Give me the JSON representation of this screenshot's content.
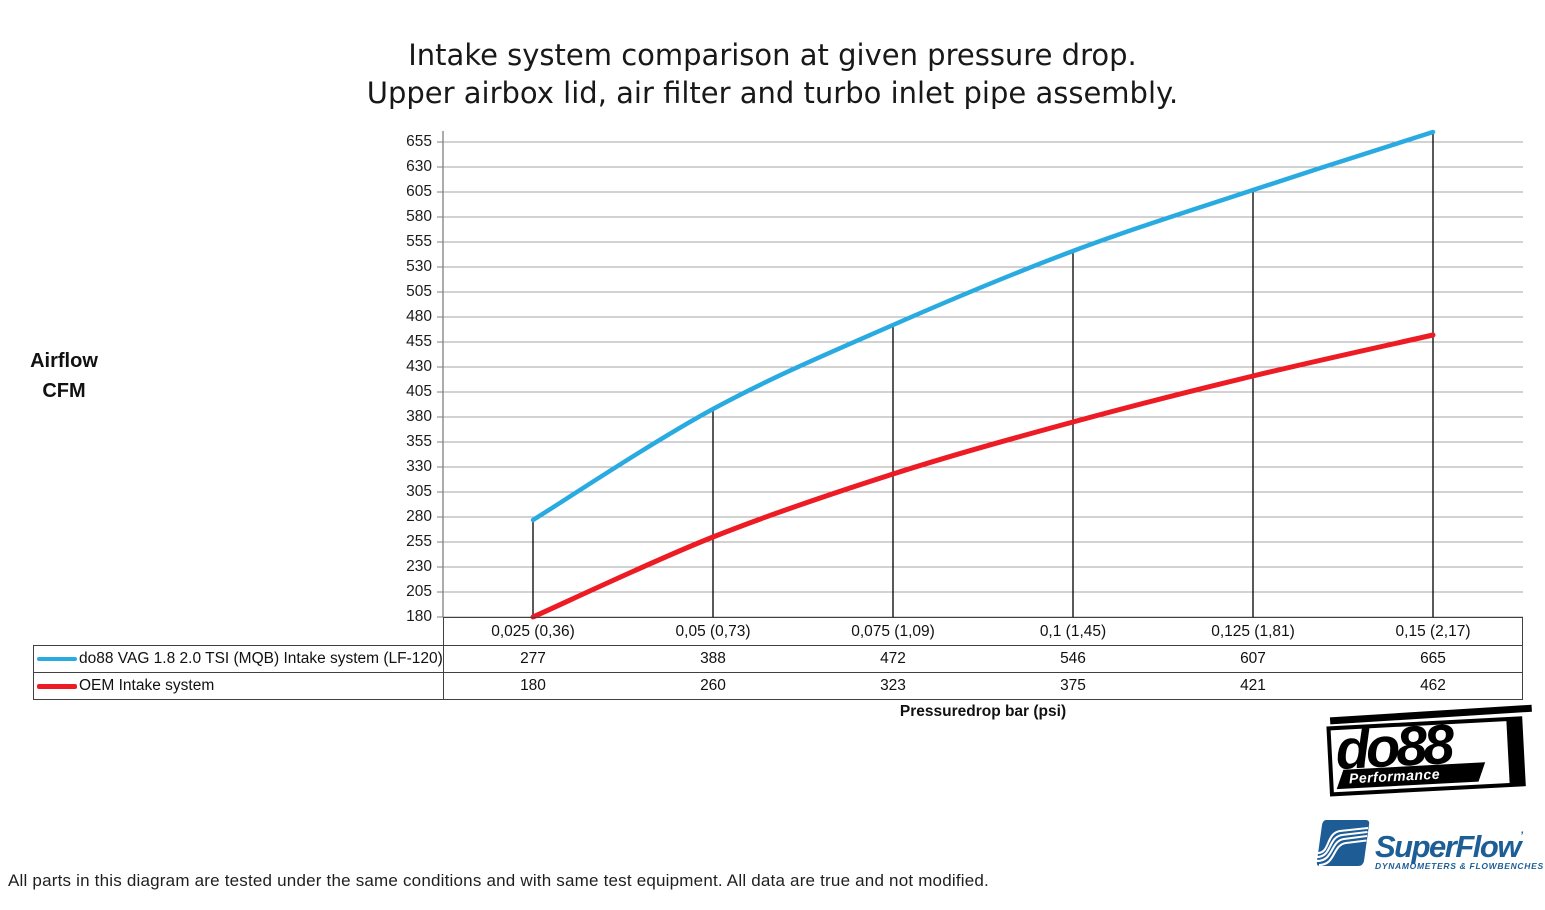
{
  "chart_data": {
    "type": "line",
    "title": "Intake system comparison at given pressure drop. Upper airbox lid, air filter and turbo inlet pipe assembly.",
    "title_lines": [
      "Intake system comparison at given pressure drop.",
      "Upper airbox lid, air filter and turbo inlet pipe assembly."
    ],
    "xlabel": "Pressuredrop bar (psi)",
    "ylabel": "Airflow CFM",
    "ylabel_lines": [
      "Airflow",
      "CFM"
    ],
    "categories": [
      "0,025 (0,36)",
      "0,05 (0,73)",
      "0,075 (1,09)",
      "0,1 (1,45)",
      "0,125 (1,81)",
      "0,15 (2,17)"
    ],
    "series": [
      {
        "name": "do88 VAG 1.8 2.0 TSI (MQB) Intake system (LF-120)",
        "values": [
          277,
          388,
          472,
          546,
          607,
          665
        ],
        "color": "#29abe2"
      },
      {
        "name": "OEM Intake system",
        "values": [
          180,
          260,
          323,
          375,
          421,
          462
        ],
        "color": "#ed1c24"
      }
    ],
    "y_ticks": [
      655,
      630,
      605,
      580,
      555,
      530,
      505,
      480,
      455,
      430,
      405,
      380,
      355,
      330,
      305,
      280,
      255,
      230,
      205,
      180
    ],
    "ylim": [
      180,
      667
    ],
    "grid": "horizontal",
    "legend_position": "table-left",
    "droplines": true,
    "colors": {
      "gridline": "#a6a6a6",
      "axis": "#7f7f7f",
      "table_border": "#414141",
      "dropline": "#000000"
    }
  },
  "footer": {
    "text": "All parts in this diagram are tested under the same conditions and with same test equipment. All data are true and not modified."
  },
  "logos": {
    "do88": {
      "name": "do88",
      "sub": "Performance"
    },
    "superflow": {
      "name": "SuperFlow",
      "mark": "’",
      "sub": "DYNAMOMETERS & FLOWBENCHES"
    }
  }
}
